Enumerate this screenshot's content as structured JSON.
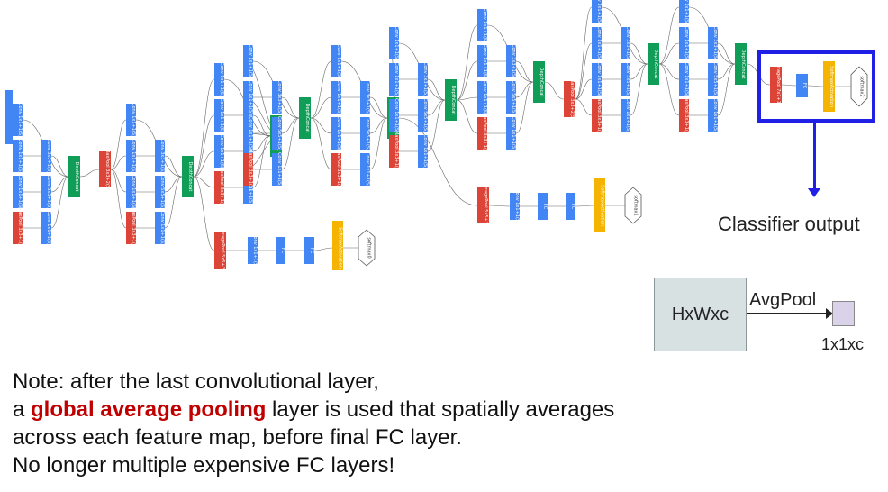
{
  "colors": {
    "conv": "#4285f4",
    "pool": "#db4437",
    "concat": "#0f9d58",
    "softmax": "#f4b400",
    "highlight": "#1f1fe6",
    "note_highlight": "#c00000"
  },
  "labels": {
    "conv1x1": "Conv 1x1+1(S)",
    "conv3x3": "Conv 3x3+1(S)",
    "conv5x5": "Conv 5x5+1(S)",
    "maxpool": "MaxPool 3x3+1(S)",
    "maxpool2": "MaxPool 3x3+2(S)",
    "concat": "DepthConcat",
    "avgpool": "AveragePool 5x5+3(V)",
    "avgpool7": "AveragePool 7x7+1(V)",
    "fc": "FC",
    "softmax_act": "SoftmaxActivation",
    "softmax0": "softmax0",
    "softmax1": "softmax1",
    "softmax2": "softmax2"
  },
  "classifier_label": "Classifier output",
  "pooling": {
    "input": "HxWxc",
    "op": "AvgPool",
    "output": "1x1xc"
  },
  "note": {
    "line1": "Note: after the last convolutional layer,",
    "line2_prefix": "a ",
    "line2_highlight": "global average pooling",
    "line2_suffix": " layer is used that spatially averages",
    "line3": "across each feature map, before final FC layer.",
    "line4": "No longer multiple expensive FC layers!"
  }
}
